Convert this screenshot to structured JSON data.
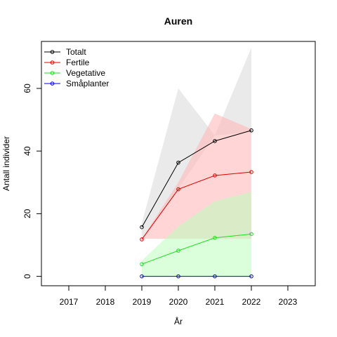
{
  "chart_data": {
    "type": "line",
    "title": "Auren",
    "xlabel": "År",
    "ylabel": "Antall individer",
    "xlim": [
      2016.25,
      2023.75
    ],
    "ylim": [
      -3,
      75
    ],
    "x_ticks": [
      2017,
      2018,
      2019,
      2020,
      2021,
      2022,
      2023
    ],
    "y_ticks": [
      0,
      20,
      40,
      60
    ],
    "x": [
      2019,
      2020,
      2021,
      2022
    ],
    "legend_position": "top-left",
    "series": [
      {
        "name": "Totalt",
        "color": "#000000",
        "band_color": "#d9d9d9",
        "values": [
          15.7,
          36.3,
          43.2,
          46.6
        ],
        "band_lower": [
          12,
          28,
          45,
          46
        ],
        "band_upper": [
          17,
          60,
          45,
          73
        ]
      },
      {
        "name": "Fertile",
        "color": "#df0000",
        "band_color": "#ffb3b3",
        "values": [
          11.8,
          27.8,
          32.2,
          33.3
        ],
        "band_lower": [
          12,
          12,
          12,
          12
        ],
        "band_upper": [
          12,
          30,
          52,
          47
        ]
      },
      {
        "name": "Vegetative",
        "color": "#22dd22",
        "band_color": "#bbffbb",
        "values": [
          3.9,
          8.2,
          12.3,
          13.5
        ],
        "band_lower": [
          0,
          0,
          0,
          0
        ],
        "band_upper": [
          5,
          16,
          24,
          27
        ]
      },
      {
        "name": "Småplanter",
        "color": "#0000ee",
        "band_color": "#bbbbff",
        "values": [
          0,
          0,
          0,
          0
        ],
        "band_lower": [
          0,
          0,
          0,
          0
        ],
        "band_upper": [
          0,
          0,
          0,
          0
        ]
      }
    ]
  }
}
